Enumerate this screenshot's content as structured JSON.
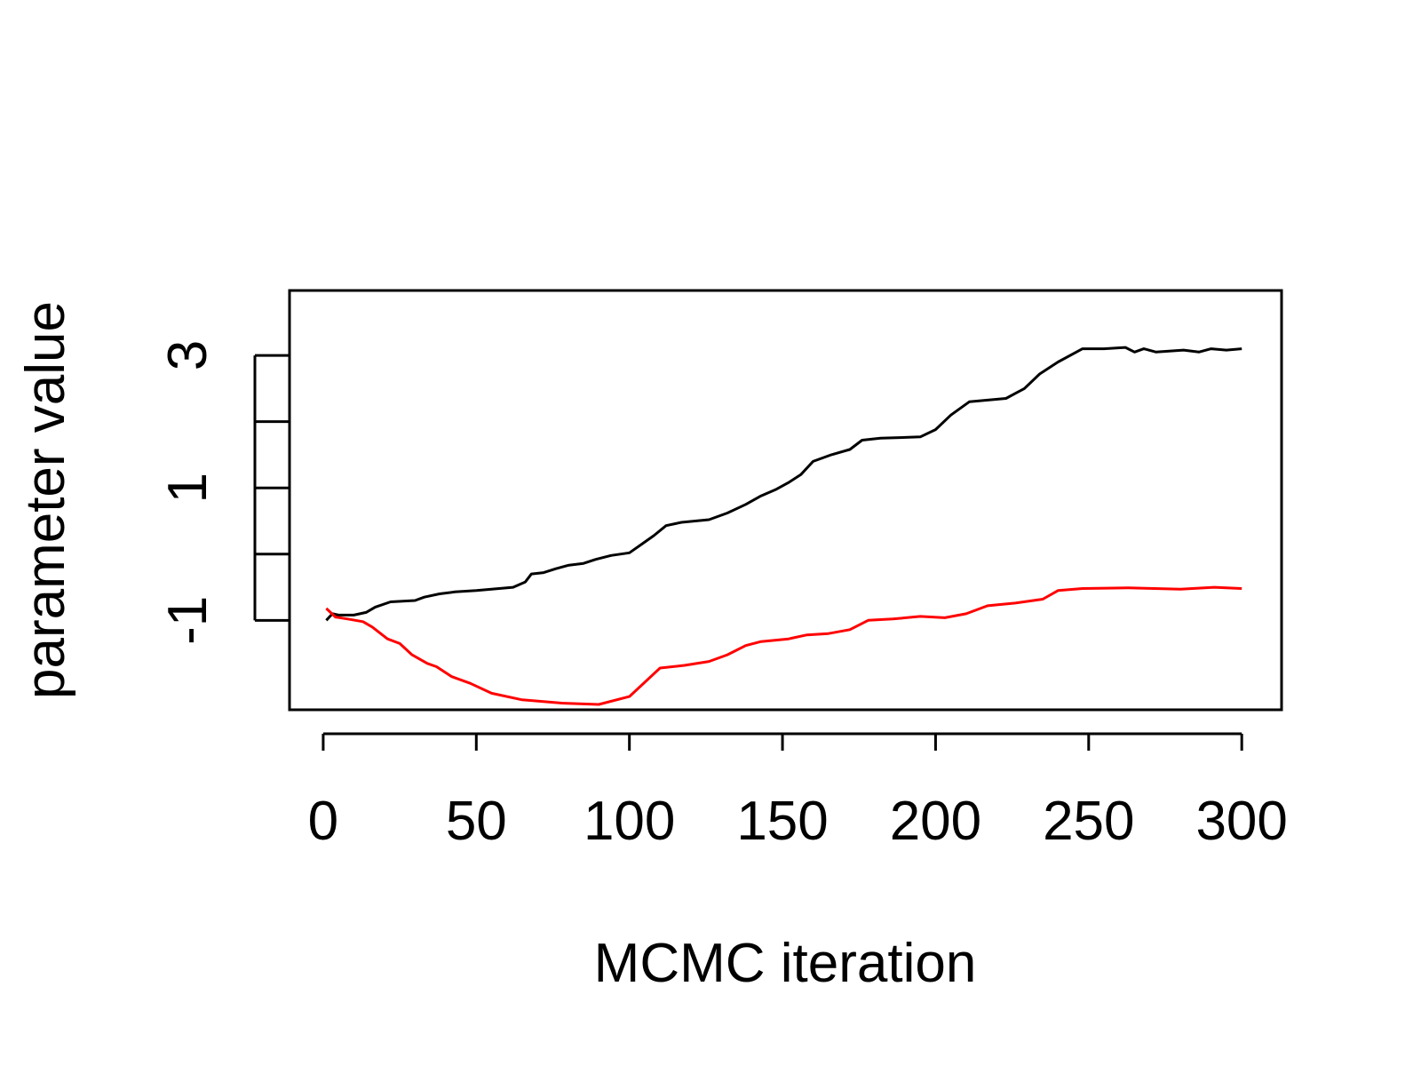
{
  "chart_data": {
    "type": "line",
    "title": "",
    "xlabel": "MCMC iteration",
    "ylabel": "parameter value",
    "xlim": [
      -11,
      313
    ],
    "ylim": [
      -2.35,
      3.98
    ],
    "xticks": [
      0,
      50,
      100,
      150,
      200,
      250,
      300
    ],
    "xtick_labels": [
      "0",
      "50",
      "100",
      "150",
      "200",
      "250",
      "300"
    ],
    "yticks": [
      -1,
      0,
      1,
      2,
      3
    ],
    "ytick_labels": [
      "-1",
      "",
      "1",
      "",
      "3"
    ],
    "grid": false,
    "legend": "none",
    "colors": {
      "axes": "#000000",
      "series1": "#000000",
      "series2": "#ff0000"
    },
    "series": [
      {
        "color": "#000000",
        "points": [
          [
            1,
            -1.0
          ],
          [
            3,
            -0.9
          ],
          [
            5,
            -0.92
          ],
          [
            10,
            -0.92
          ],
          [
            14,
            -0.88
          ],
          [
            17,
            -0.8
          ],
          [
            22,
            -0.72
          ],
          [
            30,
            -0.7
          ],
          [
            33,
            -0.65
          ],
          [
            38,
            -0.6
          ],
          [
            43,
            -0.57
          ],
          [
            50,
            -0.55
          ],
          [
            55,
            -0.53
          ],
          [
            62,
            -0.5
          ],
          [
            66,
            -0.42
          ],
          [
            68,
            -0.3
          ],
          [
            72,
            -0.28
          ],
          [
            76,
            -0.22
          ],
          [
            80,
            -0.17
          ],
          [
            85,
            -0.14
          ],
          [
            89,
            -0.08
          ],
          [
            94,
            -0.02
          ],
          [
            100,
            0.02
          ],
          [
            104,
            0.15
          ],
          [
            108,
            0.28
          ],
          [
            112,
            0.43
          ],
          [
            117,
            0.48
          ],
          [
            126,
            0.52
          ],
          [
            132,
            0.62
          ],
          [
            138,
            0.75
          ],
          [
            143,
            0.88
          ],
          [
            148,
            0.98
          ],
          [
            152,
            1.08
          ],
          [
            156,
            1.2
          ],
          [
            160,
            1.4
          ],
          [
            166,
            1.5
          ],
          [
            172,
            1.58
          ],
          [
            176,
            1.72
          ],
          [
            182,
            1.75
          ],
          [
            195,
            1.77
          ],
          [
            200,
            1.88
          ],
          [
            205,
            2.1
          ],
          [
            211,
            2.3
          ],
          [
            223,
            2.35
          ],
          [
            229,
            2.5
          ],
          [
            234,
            2.72
          ],
          [
            240,
            2.9
          ],
          [
            248,
            3.1
          ],
          [
            255,
            3.1
          ],
          [
            262,
            3.12
          ],
          [
            265,
            3.05
          ],
          [
            268,
            3.1
          ],
          [
            272,
            3.05
          ],
          [
            281,
            3.08
          ],
          [
            286,
            3.05
          ],
          [
            290,
            3.1
          ],
          [
            295,
            3.08
          ],
          [
            300,
            3.1
          ]
        ]
      },
      {
        "color": "#ff0000",
        "points": [
          [
            1,
            -0.82
          ],
          [
            4,
            -0.95
          ],
          [
            8,
            -0.98
          ],
          [
            13,
            -1.02
          ],
          [
            16,
            -1.1
          ],
          [
            21,
            -1.28
          ],
          [
            25,
            -1.35
          ],
          [
            29,
            -1.52
          ],
          [
            34,
            -1.65
          ],
          [
            37,
            -1.7
          ],
          [
            42,
            -1.85
          ],
          [
            48,
            -1.95
          ],
          [
            55,
            -2.1
          ],
          [
            65,
            -2.2
          ],
          [
            78,
            -2.25
          ],
          [
            90,
            -2.27
          ],
          [
            100,
            -2.15
          ],
          [
            110,
            -1.72
          ],
          [
            118,
            -1.68
          ],
          [
            126,
            -1.62
          ],
          [
            132,
            -1.52
          ],
          [
            138,
            -1.38
          ],
          [
            143,
            -1.32
          ],
          [
            152,
            -1.28
          ],
          [
            158,
            -1.22
          ],
          [
            165,
            -1.2
          ],
          [
            172,
            -1.14
          ],
          [
            178,
            -1.0
          ],
          [
            186,
            -0.98
          ],
          [
            195,
            -0.94
          ],
          [
            203,
            -0.96
          ],
          [
            210,
            -0.9
          ],
          [
            217,
            -0.78
          ],
          [
            226,
            -0.74
          ],
          [
            235,
            -0.68
          ],
          [
            240,
            -0.55
          ],
          [
            248,
            -0.52
          ],
          [
            263,
            -0.51
          ],
          [
            280,
            -0.53
          ],
          [
            291,
            -0.5
          ],
          [
            300,
            -0.52
          ]
        ]
      }
    ]
  }
}
